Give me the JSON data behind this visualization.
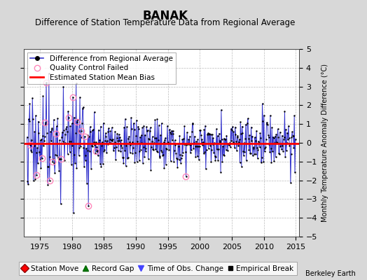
{
  "title": "BANAK",
  "subtitle": "Difference of Station Temperature Data from Regional Average",
  "ylabel_right": "Monthly Temperature Anomaly Difference (°C)",
  "xlim": [
    1972.5,
    2015.5
  ],
  "ylim": [
    -5,
    5
  ],
  "yticks_left": [
    -4,
    -3,
    -2,
    -1,
    0,
    1,
    2,
    3,
    4
  ],
  "yticks_right": [
    -5,
    -4,
    -3,
    -2,
    -1,
    0,
    1,
    2,
    3,
    4,
    5
  ],
  "xticks": [
    1975,
    1980,
    1985,
    1990,
    1995,
    2000,
    2005,
    2010,
    2015
  ],
  "bias_line_y": -0.05,
  "line_color": "#3333cc",
  "dot_color": "#000000",
  "bias_color": "#ff0000",
  "qc_edge_color": "#ff88bb",
  "background_color": "#d8d8d8",
  "plot_bg_color": "#ffffff",
  "grid_color": "#bbbbbb",
  "watermark": "Berkeley Earth",
  "title_fontsize": 12,
  "subtitle_fontsize": 8.5,
  "tick_fontsize": 8,
  "legend_fontsize": 7.5
}
